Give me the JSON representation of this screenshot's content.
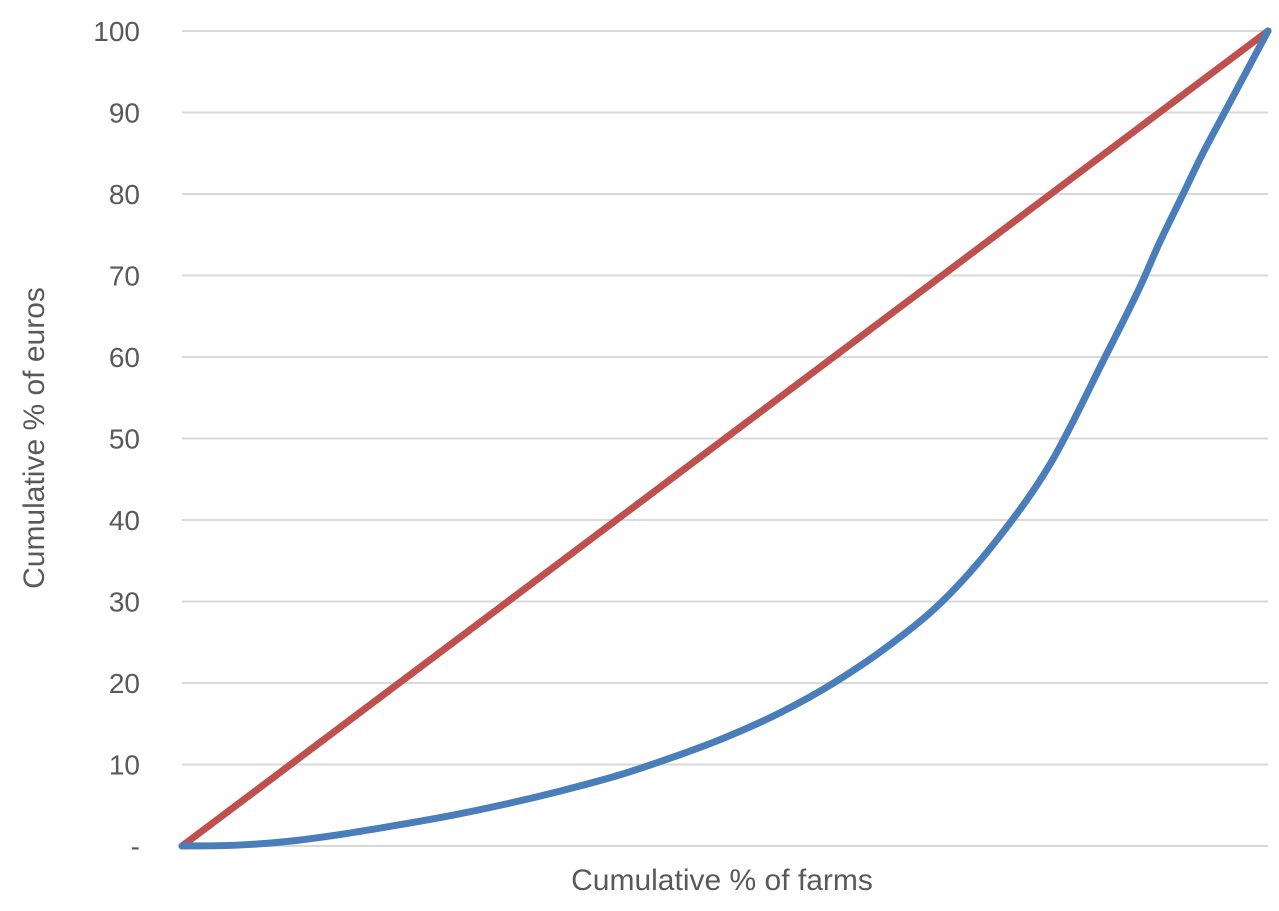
{
  "chart_data": {
    "type": "line",
    "title": "",
    "xlabel": "Cumulative % of farms",
    "ylabel": "Cumulative % of euros",
    "xlim": [
      0,
      100
    ],
    "ylim": [
      0,
      100
    ],
    "yticks": [
      0,
      10,
      20,
      30,
      40,
      50,
      60,
      70,
      80,
      90,
      100
    ],
    "ytick_labels": [
      "-",
      "10",
      "20",
      "30",
      "40",
      "50",
      "60",
      "70",
      "80",
      "90",
      "100"
    ],
    "grid": true,
    "legend": "none",
    "series": [
      {
        "color": "#c0504d",
        "x": [
          0,
          100
        ],
        "y": [
          0,
          100
        ]
      },
      {
        "color": "#4a7ebb",
        "x": [
          0,
          5,
          10,
          15,
          20,
          25,
          30,
          35,
          40,
          45,
          50,
          55,
          60,
          65,
          70,
          75,
          80,
          85,
          88,
          90,
          92,
          94,
          96,
          98,
          100
        ],
        "y": [
          0,
          0.1,
          0.6,
          1.5,
          2.6,
          3.8,
          5.2,
          6.8,
          8.6,
          10.8,
          13.3,
          16.3,
          20.0,
          24.5,
          30.0,
          37.5,
          47.0,
          60.0,
          68.0,
          74.0,
          79.5,
          85.0,
          90.0,
          95.0,
          100
        ]
      }
    ]
  }
}
